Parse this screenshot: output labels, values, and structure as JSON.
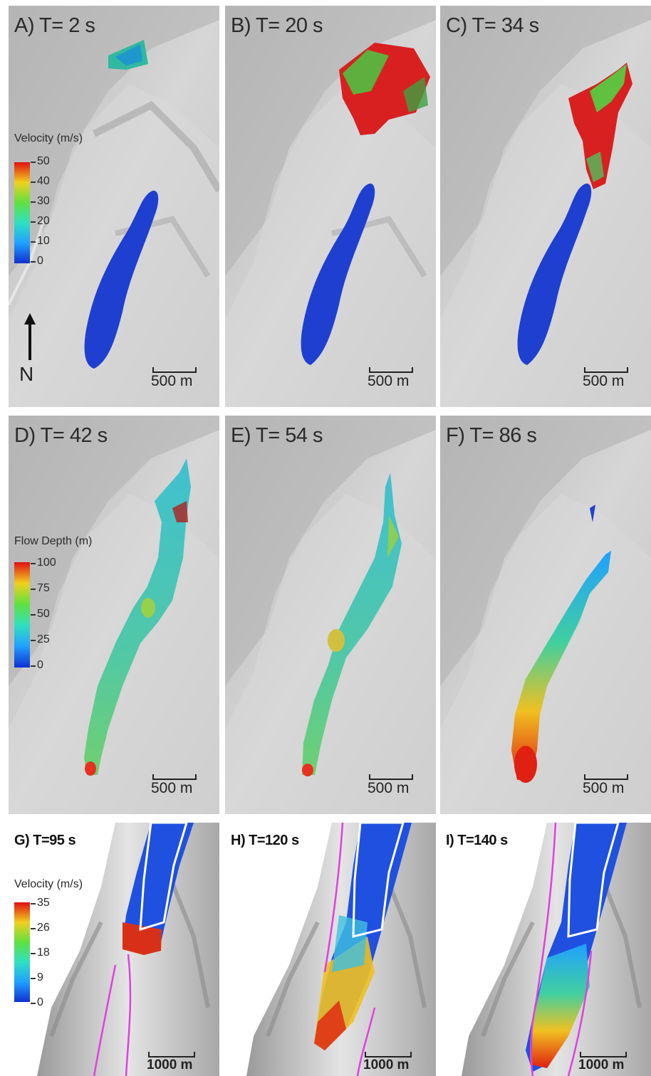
{
  "panels": {
    "a": {
      "label": "A) T= 2 s",
      "scale": "500 m"
    },
    "b": {
      "label": "B) T= 20 s",
      "scale": "500 m"
    },
    "c": {
      "label": "C) T= 34 s",
      "scale": "500 m"
    },
    "d": {
      "label": "D) T= 42 s",
      "scale": "500 m"
    },
    "e": {
      "label": "E) T= 54 s",
      "scale": "500 m"
    },
    "f": {
      "label": "F) T= 86 s",
      "scale": "500 m"
    },
    "g": {
      "label": "G) T=95 s",
      "scale": "1000 m"
    },
    "h": {
      "label": "H) T=120 s",
      "scale": "1000 m"
    },
    "i": {
      "label": "I) T=140 s",
      "scale": "1000 m"
    }
  },
  "legends": {
    "velocity_top": {
      "title": "Velocity (m/s)",
      "ticks": [
        "50",
        "40",
        "30",
        "20",
        "10",
        "0"
      ]
    },
    "flow_depth": {
      "title": "Flow Depth (m)",
      "ticks": [
        "100",
        "75",
        "50",
        "25",
        "0"
      ]
    },
    "velocity_bottom": {
      "title": "Velocity (m/s)",
      "ticks": [
        "35",
        "26",
        "18",
        "9",
        "0"
      ]
    }
  },
  "north_label": "N",
  "colors": {
    "terrain": "#c9c9c9",
    "deposit_blue": "#1f3fd0",
    "outline_magenta": "#e040e0",
    "outline_white": "#ffffff"
  }
}
